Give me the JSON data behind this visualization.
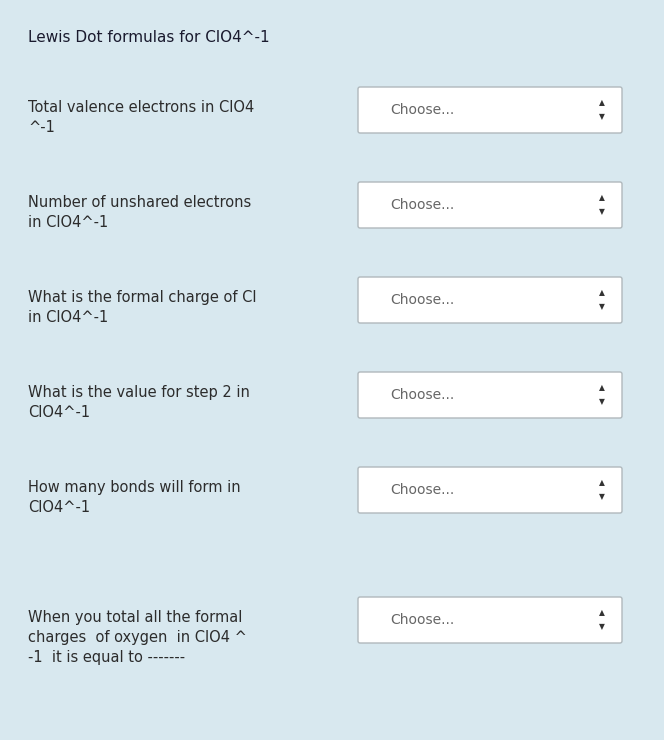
{
  "title": "Lewis Dot formulas for ClO4^-1",
  "background_color": "#d8e8ef",
  "title_fontsize": 11,
  "title_color": "#1a1a2e",
  "questions": [
    {
      "lines": [
        "Total valence electrons in ClO4",
        "^-1"
      ]
    },
    {
      "lines": [
        "Number of unshared electrons",
        "in ClO4^-1"
      ]
    },
    {
      "lines": [
        "What is the formal charge of Cl",
        "in ClO4^-1"
      ]
    },
    {
      "lines": [
        "What is the value for step 2 in",
        "ClO4^-1"
      ]
    },
    {
      "lines": [
        "How many bonds will form in",
        "ClO4^-1"
      ]
    },
    {
      "lines": [
        "When you total all the formal",
        "charges  of oxygen  in ClO4 ^",
        "-1  it is equal to -------"
      ]
    }
  ],
  "dropdown_label": "Choose...",
  "dropdown_bg": "#ffffff",
  "dropdown_border": "#b0b8bc",
  "text_color": "#2c2c2c",
  "question_fontsize": 10.5,
  "dropdown_fontsize": 10
}
